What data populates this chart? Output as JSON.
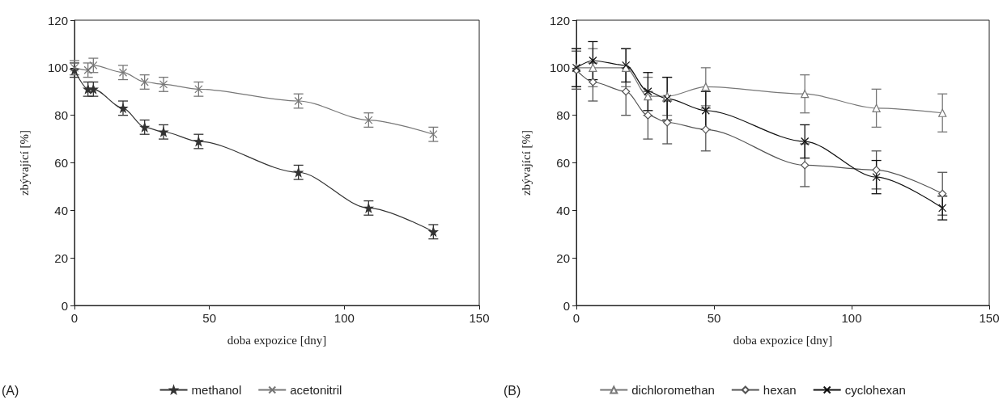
{
  "chart_data": [
    {
      "type": "line",
      "xlabel": "doba expozice [dny]",
      "ylabel": "zbývající [%]",
      "annotations": [
        "(A)"
      ],
      "xlim": [
        0,
        150
      ],
      "xticks": [
        0,
        50,
        100,
        150
      ],
      "ylim": [
        0,
        120
      ],
      "yticks": [
        0,
        20,
        40,
        60,
        80,
        100,
        120
      ],
      "grid": false,
      "legend": "bottom",
      "x": [
        0,
        5,
        7,
        18,
        26,
        33,
        46,
        83,
        109,
        133
      ],
      "series": [
        {
          "name": "methanol",
          "color": "#333333",
          "marker": "star",
          "values": [
            99,
            91,
            91,
            83,
            75,
            73,
            69,
            56,
            41,
            31
          ],
          "errors": [
            3,
            3,
            3,
            3,
            3,
            3,
            3,
            3,
            3,
            3
          ]
        },
        {
          "name": "acetonitril",
          "color": "#777777",
          "marker": "cross",
          "values": [
            100,
            99,
            101,
            98,
            94,
            93,
            91,
            86,
            78,
            72
          ],
          "errors": [
            3,
            3,
            3,
            3,
            3,
            3,
            3,
            3,
            3,
            3
          ]
        }
      ]
    },
    {
      "type": "line",
      "xlabel": "doba expozice [dny]",
      "ylabel": "zbývající [%]",
      "annotations": [
        "(B)"
      ],
      "xlim": [
        0,
        150
      ],
      "xticks": [
        0,
        50,
        100,
        150
      ],
      "ylim": [
        0,
        120
      ],
      "yticks": [
        0,
        20,
        40,
        60,
        80,
        100,
        120
      ],
      "grid": false,
      "legend": "bottom",
      "x": [
        0,
        6,
        18,
        26,
        33,
        47,
        83,
        109,
        133
      ],
      "series": [
        {
          "name": "dichloromethan",
          "color": "#777777",
          "marker": "triangle",
          "values": [
            100,
            100,
            100,
            88,
            88,
            92,
            89,
            83,
            81
          ],
          "errors": [
            8,
            8,
            8,
            8,
            8,
            8,
            8,
            8,
            8
          ]
        },
        {
          "name": "hexan",
          "color": "#555555",
          "marker": "diamond",
          "values": [
            99,
            94,
            90,
            80,
            77,
            74,
            59,
            57,
            47
          ],
          "errors": [
            8,
            8,
            10,
            10,
            9,
            9,
            9,
            8,
            9
          ]
        },
        {
          "name": "cyclohexan",
          "color": "#111111",
          "marker": "cross",
          "values": [
            100,
            103,
            101,
            90,
            87,
            82,
            69,
            54,
            41
          ],
          "errors": [
            8,
            8,
            7,
            8,
            9,
            8,
            7,
            7,
            5
          ]
        }
      ]
    }
  ]
}
